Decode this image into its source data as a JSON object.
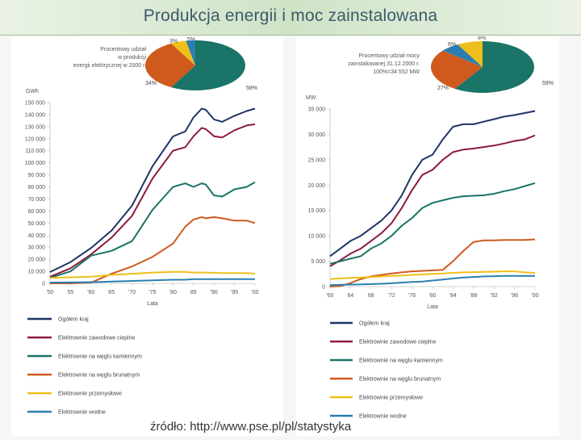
{
  "header": {
    "title": "Produkcja energii i moc zainstalowana"
  },
  "footer": {
    "source": "źródło: http://www.pse.pl/pl/statystyka"
  },
  "series_colors": {
    "total": "#1f3466",
    "thermal": "#8e1a3e",
    "hard_coal": "#1a7468",
    "lignite": "#cf5a1e",
    "industrial": "#eebf1a",
    "hydro": "#2a7fb0"
  },
  "chart_data": [
    {
      "type": "line",
      "ylabel": "GWh",
      "xlabel": "Lata",
      "xlim": [
        1950,
        2000
      ],
      "ylim": [
        0,
        150000
      ],
      "x_ticks": [
        "'50",
        "55",
        "'60",
        "65",
        "'70",
        "'75",
        "'80",
        "85",
        "'90",
        "'95",
        "'00"
      ],
      "y_ticks": [
        "0",
        "10 000",
        "20 000",
        "30 000",
        "40 000",
        "50 000",
        "60 000",
        "70 000",
        "80 000",
        "90 000",
        "100 000",
        "110 000",
        "120 000",
        "130 000",
        "140 000",
        "150 000"
      ],
      "x": [
        1950,
        1955,
        1960,
        1965,
        1970,
        1975,
        1980,
        1983,
        1985,
        1987,
        1988,
        1990,
        1992,
        1995,
        1998,
        2000
      ],
      "series": [
        {
          "key": "total",
          "name": "Ogółem kraj",
          "values": [
            9400,
            17700,
            29300,
            43800,
            64500,
            97200,
            121900,
            126000,
            137700,
            145000,
            144000,
            136000,
            134000,
            139000,
            143000,
            145000
          ]
        },
        {
          "key": "thermal",
          "name": "Elektrownie zawodowe cieplne",
          "values": [
            5500,
            12500,
            24000,
            38000,
            56000,
            87000,
            110000,
            113000,
            122000,
            129000,
            128000,
            122000,
            121000,
            127000,
            131000,
            132000
          ]
        },
        {
          "key": "hard_coal",
          "name": "Elektrownie na węglu kamiennym",
          "values": [
            4500,
            10000,
            23000,
            27000,
            35000,
            61000,
            80000,
            83000,
            80000,
            83000,
            82000,
            73000,
            72000,
            78000,
            80000,
            84000
          ]
        },
        {
          "key": "lignite",
          "name": "Elektrownie na węglu brunatnym",
          "values": [
            0,
            0,
            700,
            8000,
            14000,
            22000,
            33000,
            47000,
            53000,
            55000,
            54000,
            55000,
            54000,
            52000,
            52000,
            50000
          ]
        },
        {
          "key": "industrial",
          "name": "Elektrownie przemysłowe",
          "values": [
            4500,
            5000,
            5500,
            7000,
            8000,
            9000,
            9500,
            9500,
            9000,
            9000,
            9000,
            8800,
            8500,
            8500,
            8500,
            8000
          ]
        },
        {
          "key": "hydro",
          "name": "Elektrownie wodne",
          "values": [
            700,
            800,
            1000,
            1500,
            2000,
            2500,
            3000,
            3000,
            3500,
            3500,
            3500,
            3500,
            3500,
            3500,
            3500,
            3500
          ]
        }
      ],
      "pie": {
        "caption": [
          "Procentowy udział",
          "w produkcji",
          "energii elektrycznej w 2000 r."
        ],
        "slices": [
          {
            "label": "58%",
            "value": 58,
            "key": "hard_coal"
          },
          {
            "label": "34%",
            "value": 34,
            "key": "lignite"
          },
          {
            "label": "5%",
            "value": 5,
            "key": "industrial"
          },
          {
            "label": "3%",
            "value": 3,
            "key": "hydro"
          }
        ]
      }
    },
    {
      "type": "line",
      "ylabel": "MW",
      "xlabel": "Lata",
      "xlim": [
        1960,
        2000
      ],
      "ylim": [
        0,
        35000
      ],
      "x_ticks": [
        "'60",
        "64",
        "68",
        "'72",
        "'76",
        "'80",
        "'84",
        "'88",
        "'92",
        "'96",
        "'00"
      ],
      "y_ticks": [
        "0",
        "5 000",
        "10 000",
        "15 000",
        "20 000",
        "25 000",
        "30 000",
        "35 000"
      ],
      "x": [
        1960,
        1962,
        1964,
        1966,
        1968,
        1970,
        1972,
        1974,
        1976,
        1978,
        1980,
        1982,
        1984,
        1986,
        1988,
        1990,
        1992,
        1994,
        1996,
        1998,
        2000
      ],
      "series": [
        {
          "key": "total",
          "name": "Ogółem kraj",
          "values": [
            6000,
            7500,
            9000,
            10000,
            11500,
            13000,
            15000,
            18000,
            22000,
            25000,
            26000,
            29000,
            31500,
            32000,
            32000,
            32500,
            33000,
            33500,
            33800,
            34200,
            34600
          ]
        },
        {
          "key": "thermal",
          "name": "Elektrownie zawodowe cieplne",
          "values": [
            4000,
            5200,
            6500,
            7500,
            9000,
            10500,
            12500,
            15500,
            19000,
            22000,
            23000,
            25000,
            26500,
            27000,
            27200,
            27500,
            27800,
            28200,
            28700,
            29000,
            29800
          ]
        },
        {
          "key": "hard_coal",
          "name": "Elektrownie na węglu kamiennym",
          "values": [
            4500,
            5000,
            5500,
            6000,
            7500,
            8500,
            10000,
            12000,
            13500,
            15500,
            16500,
            17000,
            17500,
            17800,
            17900,
            18000,
            18300,
            18800,
            19200,
            19800,
            20400
          ]
        },
        {
          "key": "lignite",
          "name": "Elektrownie na węglu brunatnym",
          "values": [
            0,
            100,
            700,
            1500,
            2000,
            2300,
            2600,
            2800,
            3000,
            3100,
            3200,
            3300,
            5000,
            7000,
            8800,
            9100,
            9100,
            9200,
            9200,
            9200,
            9300
          ]
        },
        {
          "key": "industrial",
          "name": "Elektrownie przemysłowe",
          "values": [
            1500,
            1600,
            1700,
            1800,
            1900,
            2000,
            2100,
            2200,
            2300,
            2400,
            2500,
            2600,
            2700,
            2800,
            2850,
            2900,
            2950,
            3000,
            3000,
            2800,
            2700
          ]
        },
        {
          "key": "hydro",
          "name": "Elektrownie wodne",
          "values": [
            300,
            350,
            400,
            450,
            500,
            550,
            650,
            800,
            900,
            1000,
            1200,
            1400,
            1600,
            1800,
            1900,
            2000,
            2050,
            2100,
            2100,
            2100,
            2100
          ]
        }
      ],
      "pie": {
        "caption": [
          "Procentowy udział mocy",
          "zainstalowanej 31.12.2000 r.",
          "100%=34 552 MW"
        ],
        "slices": [
          {
            "label": "59%",
            "value": 59,
            "key": "hard_coal"
          },
          {
            "label": "27%",
            "value": 27,
            "key": "lignite"
          },
          {
            "label": "6%",
            "value": 6,
            "key": "hydro"
          },
          {
            "label": "8%",
            "value": 8,
            "key": "industrial"
          }
        ]
      }
    }
  ]
}
